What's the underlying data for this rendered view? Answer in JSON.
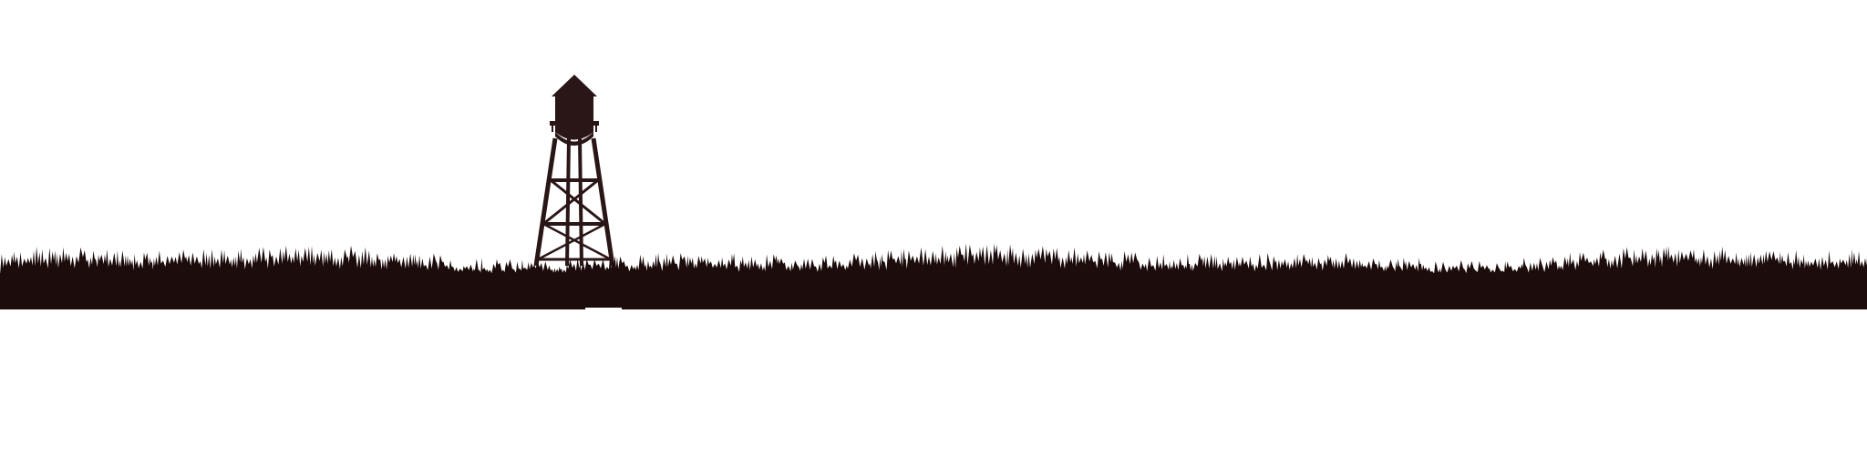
{
  "scene": {
    "background_color": "#ffffff",
    "silhouette_color": "#1c0c0c",
    "tower_color": "#2a1616",
    "subject": "water-tower-icon",
    "foreground": "grass-silhouette"
  }
}
